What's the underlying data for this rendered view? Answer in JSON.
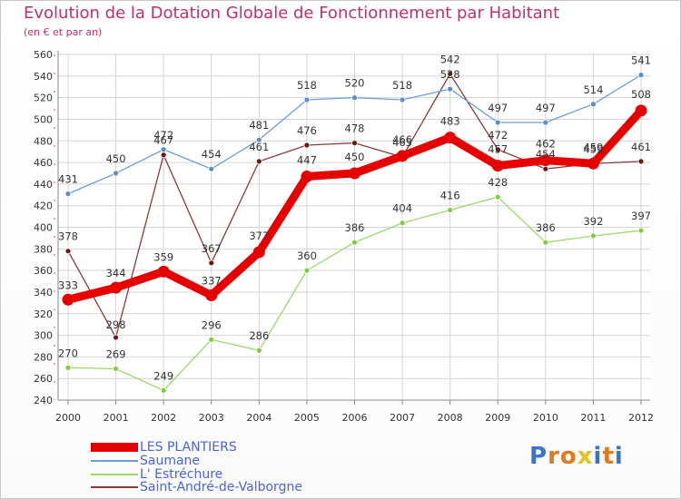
{
  "title": "Evolution de la Dotation Globale de Fonctionnement par Habitant",
  "subtitle": "(en € et par an)",
  "logo": {
    "text": "Proxiti",
    "letters": [
      "P",
      "r",
      "o",
      "x",
      "i",
      "t",
      "i"
    ],
    "colors": [
      "#3b74c7",
      "#e07a1f",
      "#e07a1f",
      "#e8c21c",
      "#3b74c7",
      "#e07a1f",
      "#3b74c7"
    ]
  },
  "chart_data": {
    "type": "line",
    "title": "Evolution de la Dotation Globale de Fonctionnement par Habitant",
    "subtitle": "(en € et par an)",
    "xlabel": "",
    "ylabel": "",
    "categories": [
      "2000",
      "2001",
      "2002",
      "2003",
      "2004",
      "2005",
      "2006",
      "2007",
      "2008",
      "2009",
      "2010",
      "2011",
      "2012"
    ],
    "ylim": [
      240,
      560
    ],
    "yticks": [
      240,
      260,
      280,
      300,
      320,
      340,
      360,
      380,
      400,
      420,
      440,
      460,
      480,
      500,
      520,
      540,
      560
    ],
    "grid": true,
    "series": [
      {
        "name": "LES PLANTIERS",
        "color": "#e60000",
        "emphasis": true,
        "values": [
          333,
          344,
          359,
          337,
          377,
          447,
          450,
          466,
          483,
          457,
          462,
          459,
          508
        ],
        "labels": [
          "333",
          "344",
          "359",
          "337",
          "377",
          "447",
          "450",
          "466",
          "483",
          "457",
          "462",
          "459",
          "508"
        ]
      },
      {
        "name": "Saumane",
        "color": "#6a9ed0",
        "point_color": "#5b8ccc",
        "values": [
          431,
          450,
          472,
          454,
          481,
          518,
          520,
          518,
          528,
          497,
          497,
          514,
          541
        ],
        "labels": [
          "431",
          "450",
          "472",
          "454",
          "481",
          "518",
          "520",
          "518",
          "528",
          "497",
          "497",
          "514",
          "541"
        ]
      },
      {
        "name": "L' Estréchure",
        "color": "#9ad86b",
        "point_color": "#7fcf3c",
        "values": [
          270,
          269,
          249,
          296,
          286,
          360,
          386,
          404,
          416,
          428,
          386,
          392,
          397
        ],
        "labels": [
          "270",
          "269",
          "249",
          "296",
          "286",
          "360",
          "386",
          "404",
          "416",
          "428",
          "386",
          "392",
          "397"
        ]
      },
      {
        "name": "Saint-André-de-Valborgne",
        "color": "#8a3a3a",
        "point_color": "#6b1717",
        "values": [
          378,
          298,
          467,
          367,
          461,
          476,
          478,
          465,
          542,
          472,
          454,
          459,
          461
        ],
        "labels": [
          "378",
          "298",
          "467",
          "367",
          "461",
          "476",
          "478",
          "465",
          "542",
          "472",
          "454",
          "459",
          "461"
        ]
      }
    ],
    "legend_position": "bottom-left"
  }
}
